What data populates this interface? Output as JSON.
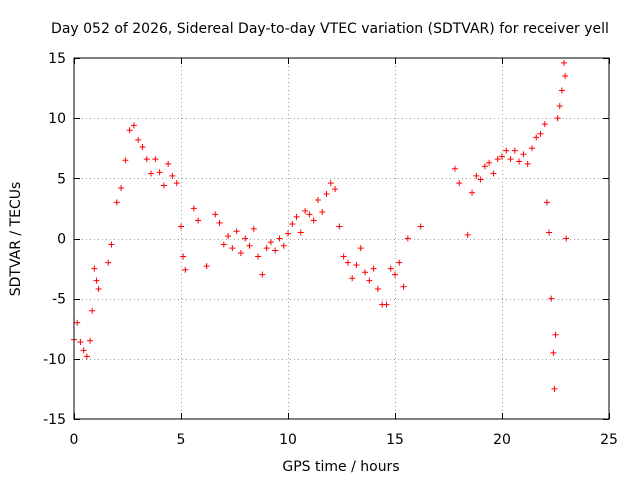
{
  "chart_data": {
    "type": "scatter",
    "title": "Day 052 of 2026, Sidereal Day-to-day VTEC variation (SDTVAR) for receiver yell",
    "xlabel": "GPS time / hours",
    "ylabel": "SDTVAR / TECUs",
    "xlim": [
      0,
      25
    ],
    "ylim": [
      -15,
      15
    ],
    "xticks": [
      0,
      5,
      10,
      15,
      20,
      25
    ],
    "yticks": [
      -15,
      -10,
      -5,
      0,
      5,
      10,
      15
    ],
    "xtick_labels": [
      "0",
      "5",
      "10",
      "15",
      "20",
      "25"
    ],
    "ytick_labels": [
      "-15",
      "-10",
      "-5",
      "0",
      "5",
      "10",
      "15"
    ],
    "grid": true,
    "marker": "+",
    "color": "#ff0000",
    "series": [
      {
        "name": "SDTVAR",
        "trace": [
          [
            0.0,
            -8.4
          ],
          [
            0.15,
            -7.0
          ],
          [
            0.3,
            -8.6
          ],
          [
            0.45,
            -9.3
          ],
          [
            0.6,
            -9.8
          ],
          [
            0.75,
            -8.5
          ],
          [
            0.85,
            -6.0
          ],
          [
            0.95,
            -2.5
          ],
          [
            1.05,
            -3.5
          ],
          [
            1.15,
            -4.2
          ],
          [
            1.6,
            -2.0
          ],
          [
            1.75,
            -0.5
          ],
          [
            2.0,
            3.0
          ],
          [
            2.2,
            4.2
          ],
          [
            2.4,
            6.5
          ],
          [
            2.6,
            9.0
          ],
          [
            2.8,
            9.4
          ],
          [
            3.0,
            8.2
          ],
          [
            3.2,
            7.6
          ],
          [
            3.4,
            6.6
          ],
          [
            3.6,
            5.4
          ],
          [
            3.8,
            6.6
          ],
          [
            4.0,
            5.5
          ],
          [
            4.2,
            4.4
          ],
          [
            4.4,
            6.2
          ],
          [
            4.6,
            5.2
          ],
          [
            4.8,
            4.6
          ],
          [
            5.0,
            1.0
          ],
          [
            5.1,
            -1.5
          ],
          [
            5.2,
            -2.6
          ],
          [
            5.6,
            2.5
          ],
          [
            5.8,
            1.5
          ],
          [
            6.2,
            -2.3
          ],
          [
            6.6,
            2.0
          ],
          [
            6.8,
            1.3
          ],
          [
            7.0,
            -0.5
          ],
          [
            7.2,
            0.2
          ],
          [
            7.4,
            -0.8
          ],
          [
            7.6,
            0.6
          ],
          [
            7.8,
            -1.2
          ],
          [
            8.0,
            0.0
          ],
          [
            8.2,
            -0.6
          ],
          [
            8.4,
            0.8
          ],
          [
            8.6,
            -1.5
          ],
          [
            8.8,
            -3.0
          ],
          [
            9.0,
            -0.8
          ],
          [
            9.2,
            -0.3
          ],
          [
            9.4,
            -1.0
          ],
          [
            9.6,
            0.0
          ],
          [
            9.8,
            -0.6
          ],
          [
            10.0,
            0.4
          ],
          [
            10.2,
            1.2
          ],
          [
            10.4,
            1.8
          ],
          [
            10.6,
            0.5
          ],
          [
            10.8,
            2.3
          ],
          [
            11.0,
            2.0
          ],
          [
            11.2,
            1.5
          ],
          [
            11.4,
            3.2
          ],
          [
            11.6,
            2.2
          ],
          [
            11.8,
            3.7
          ],
          [
            12.0,
            4.6
          ],
          [
            12.2,
            4.1
          ],
          [
            12.4,
            1.0
          ],
          [
            12.6,
            -1.5
          ],
          [
            12.8,
            -2.0
          ],
          [
            13.0,
            -3.3
          ],
          [
            13.2,
            -2.2
          ],
          [
            13.4,
            -0.8
          ],
          [
            13.6,
            -2.8
          ],
          [
            13.8,
            -3.5
          ],
          [
            14.0,
            -2.5
          ],
          [
            14.2,
            -4.2
          ],
          [
            14.4,
            -5.5
          ],
          [
            14.6,
            -5.5
          ],
          [
            14.8,
            -2.5
          ],
          [
            15.0,
            -3.0
          ],
          [
            15.2,
            -2.0
          ],
          [
            15.4,
            -4.0
          ],
          [
            15.6,
            0.0
          ],
          [
            16.2,
            1.0
          ],
          [
            17.8,
            5.8
          ],
          [
            18.0,
            4.6
          ],
          [
            18.4,
            0.3
          ],
          [
            18.6,
            3.8
          ],
          [
            18.8,
            5.2
          ],
          [
            19.0,
            4.9
          ],
          [
            19.2,
            6.0
          ],
          [
            19.4,
            6.3
          ],
          [
            19.6,
            5.4
          ],
          [
            19.8,
            6.6
          ],
          [
            20.0,
            6.8
          ],
          [
            20.2,
            7.3
          ],
          [
            20.4,
            6.6
          ],
          [
            20.6,
            7.3
          ],
          [
            20.8,
            6.4
          ],
          [
            21.0,
            7.0
          ],
          [
            21.2,
            6.2
          ],
          [
            21.4,
            7.5
          ],
          [
            21.6,
            8.4
          ],
          [
            21.8,
            8.7
          ],
          [
            22.0,
            9.5
          ],
          [
            22.1,
            3.0
          ],
          [
            22.2,
            0.5
          ],
          [
            22.3,
            -5.0
          ],
          [
            22.4,
            -9.5
          ],
          [
            22.45,
            -12.5
          ],
          [
            22.5,
            -8.0
          ],
          [
            22.6,
            10.0
          ],
          [
            22.7,
            11.0
          ],
          [
            22.8,
            12.3
          ],
          [
            22.9,
            14.6
          ],
          [
            22.95,
            13.5
          ],
          [
            23.0,
            0.0
          ]
        ]
      }
    ]
  }
}
